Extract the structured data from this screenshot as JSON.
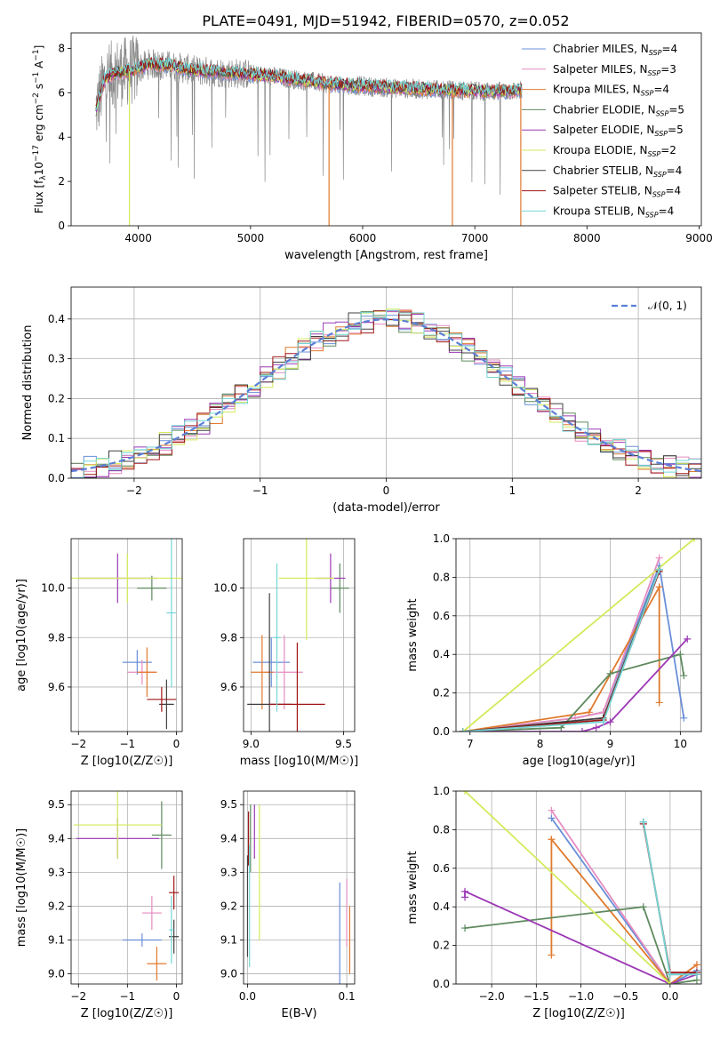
{
  "figure": {
    "title": "PLATE=0491, MJD=51942, FIBERID=0570, z=0.052"
  },
  "models": [
    {
      "name": "Chabrier MILES",
      "nssp": "4",
      "color": "#6a8fd8"
    },
    {
      "name": "Salpeter MILES",
      "nssp": "3",
      "color": "#e68cc0"
    },
    {
      "name": "Kroupa MILES",
      "nssp": "4",
      "color": "#e07a2e"
    },
    {
      "name": "Chabrier ELODIE",
      "nssp": "5",
      "color": "#5e8a5e"
    },
    {
      "name": "Salpeter ELODIE",
      "nssp": "5",
      "color": "#9c38b5"
    },
    {
      "name": "Kroupa ELODIE",
      "nssp": "2",
      "color": "#d4ea5a"
    },
    {
      "name": "Chabrier STELIB",
      "nssp": "4",
      "color": "#404040"
    },
    {
      "name": "Salpeter STELIB",
      "nssp": "4",
      "color": "#a01818"
    },
    {
      "name": "Kroupa STELIB",
      "nssp": "4",
      "color": "#74d6d6"
    }
  ],
  "chart_data": [
    {
      "id": "spectrum",
      "type": "line",
      "xlabel": "wavelength [Angstrom, rest frame]",
      "ylabel": "Flux [f_λ 10^-17 erg cm^-2 s^-1 A^-1]",
      "xlim": [
        3400,
        9020
      ],
      "ylim": [
        0,
        8.7
      ],
      "xticks": [
        4000,
        5000,
        6000,
        7000,
        8000,
        9000
      ],
      "yticks": [
        0,
        2,
        4,
        6,
        8
      ],
      "grid": false,
      "legend": "top-right",
      "data_range": [
        3620,
        7420
      ],
      "continuum": {
        "x": [
          3620,
          3700,
          3800,
          3950,
          4100,
          4300,
          4500,
          4800,
          5100,
          5400,
          5700,
          6000,
          6300,
          6600,
          6900,
          7200,
          7420
        ],
        "y": [
          5.2,
          6.6,
          6.9,
          7.0,
          7.3,
          7.2,
          7.0,
          6.9,
          6.8,
          6.6,
          6.4,
          6.3,
          6.2,
          6.15,
          6.1,
          6.05,
          6.1
        ]
      },
      "data_spectrum_color": "#888888",
      "lower_dips": [
        {
          "x": 5700,
          "color": "#e07a2e"
        },
        {
          "x": 6800,
          "color": "#e07a2e"
        },
        {
          "x": 3920,
          "color": "#d4ea5a"
        },
        {
          "x": 7410,
          "color": "#e07a2e"
        }
      ]
    },
    {
      "id": "residual_histogram",
      "type": "bar",
      "xlabel": "(data-model)/error",
      "ylabel": "Normed distribution",
      "xlim": [
        -2.5,
        2.5
      ],
      "ylim": [
        0,
        0.48
      ],
      "xticks": [
        -2,
        -1,
        0,
        1,
        2
      ],
      "yticks": [
        0.0,
        0.1,
        0.2,
        0.3,
        0.4
      ],
      "grid": true,
      "bin_width": 0.1,
      "reference": {
        "label": "𝒩(0, 1)",
        "color": "#5b7fd6",
        "style": "dashed",
        "mean": 0,
        "sigma": 1
      }
    },
    {
      "id": "age_vs_Z",
      "type": "scatter",
      "xlabel": "Z [log10(Z/Z☉)]",
      "ylabel": "age  [log10(age/yr)]",
      "xlim": [
        -2.15,
        0.12
      ],
      "ylim": [
        9.42,
        10.2
      ],
      "xticks": [
        -2,
        -1,
        0
      ],
      "yticks": [
        9.6,
        9.8,
        10.0
      ],
      "grid": true,
      "points": [
        {
          "model": 0,
          "x": -0.8,
          "y": 9.7,
          "xerr": 0.3,
          "yerr": 0.05
        },
        {
          "model": 1,
          "x": -0.7,
          "y": 9.66,
          "xerr": 0.3,
          "yerr": 0.05
        },
        {
          "model": 2,
          "x": -0.6,
          "y": 9.66,
          "xerr": 0.2,
          "yerr": 0.1
        },
        {
          "model": 3,
          "x": -0.5,
          "y": 10.0,
          "xerr": 0.3,
          "yerr": 0.05
        },
        {
          "model": 4,
          "x": -1.2,
          "y": 10.04,
          "xerr": 0.8,
          "yerr": 0.1
        },
        {
          "model": 5,
          "x": -1.0,
          "y": 10.04,
          "xerr": 1.2,
          "yerr": 0.1
        },
        {
          "model": 6,
          "x": -0.2,
          "y": 9.53,
          "xerr": 0.15,
          "yerr": 0.1
        },
        {
          "model": 7,
          "x": -0.3,
          "y": 9.55,
          "xerr": 0.3,
          "yerr": 0.05
        },
        {
          "model": 8,
          "x": -0.1,
          "y": 9.9,
          "xerr": 0.1,
          "yerr": 0.3
        }
      ]
    },
    {
      "id": "age_vs_mass",
      "type": "scatter",
      "xlabel": "mass [log10(M/M☉)]",
      "ylabel": "",
      "xlim": [
        8.96,
        9.56
      ],
      "ylim": [
        9.42,
        10.2
      ],
      "xticks": [
        9.0,
        9.5
      ],
      "yticks": [
        9.6,
        9.8,
        10.0
      ],
      "grid": true,
      "points": [
        {
          "model": 0,
          "x": 9.11,
          "y": 9.7,
          "xerr": 0.1,
          "yerr": 0.1
        },
        {
          "model": 1,
          "x": 9.18,
          "y": 9.66,
          "xerr": 0.1,
          "yerr": 0.15
        },
        {
          "model": 2,
          "x": 9.06,
          "y": 9.66,
          "xerr": 0.06,
          "yerr": 0.15
        },
        {
          "model": 3,
          "x": 9.48,
          "y": 10.0,
          "xerr": 0.05,
          "yerr": 0.1
        },
        {
          "model": 4,
          "x": 9.43,
          "y": 10.04,
          "xerr": 0.08,
          "yerr": 0.1
        },
        {
          "model": 5,
          "x": 9.3,
          "y": 10.04,
          "xerr": 0.15,
          "yerr": 0.25
        },
        {
          "model": 6,
          "x": 9.1,
          "y": 9.53,
          "xerr": 0.12,
          "yerr": 0.45
        },
        {
          "model": 7,
          "x": 9.25,
          "y": 9.53,
          "xerr": 0.15,
          "yerr": 0.25
        },
        {
          "model": 8,
          "x": 9.14,
          "y": 9.8,
          "xerr": 0.02,
          "yerr": 0.3
        }
      ]
    },
    {
      "id": "weight_vs_age",
      "type": "line",
      "xlabel": "age  [log10(age/yr)]",
      "ylabel": "mass weight",
      "xlim": [
        6.8,
        10.3
      ],
      "ylim": [
        0,
        1
      ],
      "xticks": [
        7,
        8,
        9,
        10
      ],
      "yticks": [
        0.0,
        0.2,
        0.4,
        0.6,
        0.8,
        1.0
      ],
      "grid": true,
      "series": [
        {
          "model": 0,
          "x": [
            6.9,
            8.5,
            8.9,
            9.7,
            10.05
          ],
          "y": [
            0.0,
            0.07,
            0.1,
            0.86,
            0.07
          ]
        },
        {
          "model": 1,
          "x": [
            6.9,
            8.5,
            8.9,
            9.7
          ],
          "y": [
            0.0,
            0.07,
            0.1,
            0.9
          ]
        },
        {
          "model": 2,
          "x": [
            6.9,
            8.7,
            9.7,
            9.7
          ],
          "y": [
            0.0,
            0.1,
            0.75,
            0.15
          ]
        },
        {
          "model": 3,
          "x": [
            6.9,
            8.3,
            9.0,
            10.0,
            10.05
          ],
          "y": [
            0.0,
            0.02,
            0.3,
            0.4,
            0.29
          ]
        },
        {
          "model": 4,
          "x": [
            6.9,
            8.6,
            8.8,
            9.0,
            10.1
          ],
          "y": [
            0.0,
            0.0,
            0.02,
            0.05,
            0.48
          ]
        },
        {
          "model": 5,
          "x": [
            6.9,
            10.2
          ],
          "y": [
            0.0,
            1.0
          ]
        },
        {
          "model": 6,
          "x": [
            6.9,
            8.9,
            9.7
          ],
          "y": [
            0.0,
            0.07,
            0.84
          ]
        },
        {
          "model": 7,
          "x": [
            6.9,
            8.9,
            9.7
          ],
          "y": [
            0.0,
            0.06,
            0.83
          ]
        },
        {
          "model": 8,
          "x": [
            6.9,
            8.9,
            9.7
          ],
          "y": [
            0.0,
            0.05,
            0.84
          ]
        }
      ]
    },
    {
      "id": "mass_vs_Z",
      "type": "scatter",
      "xlabel": "Z [log10(Z/Z☉)]",
      "ylabel": "mass [log10(M/M☉)]",
      "xlim": [
        -2.15,
        0.12
      ],
      "ylim": [
        8.97,
        9.54
      ],
      "xticks": [
        -2,
        -1,
        0
      ],
      "yticks": [
        9.0,
        9.1,
        9.2,
        9.3,
        9.4,
        9.5
      ],
      "grid": true,
      "points": [
        {
          "model": 0,
          "x": -0.7,
          "y": 9.1,
          "xerr": 0.4,
          "yerr": 0.02
        },
        {
          "model": 1,
          "x": -0.5,
          "y": 9.18,
          "xerr": 0.2,
          "yerr": 0.05
        },
        {
          "model": 2,
          "x": -0.4,
          "y": 9.03,
          "xerr": 0.2,
          "yerr": 0.05
        },
        {
          "model": 3,
          "x": -0.3,
          "y": 9.41,
          "xerr": 0.2,
          "yerr": 0.1
        },
        {
          "model": 4,
          "x": -1.2,
          "y": 9.4,
          "xerr": 0.85,
          "yerr": 0.06
        },
        {
          "model": 5,
          "x": -1.2,
          "y": 9.44,
          "xerr": 0.9,
          "yerr": 0.1
        },
        {
          "model": 6,
          "x": -0.05,
          "y": 9.11,
          "xerr": 0.1,
          "yerr": 0.05
        },
        {
          "model": 7,
          "x": -0.05,
          "y": 9.24,
          "xerr": 0.1,
          "yerr": 0.05
        },
        {
          "model": 8,
          "x": -0.1,
          "y": 9.13,
          "xerr": 0.05,
          "yerr": 0.1
        }
      ]
    },
    {
      "id": "mass_vs_ebv",
      "type": "scatter",
      "xlabel": "E(B-V)",
      "ylabel": "",
      "xlim": [
        -0.004,
        0.108
      ],
      "ylim": [
        8.97,
        9.54
      ],
      "xticks": [
        0.0,
        0.1
      ],
      "yticks": [
        9.0,
        9.1,
        9.2,
        9.3,
        9.4,
        9.5
      ],
      "grid": true,
      "points": [
        {
          "model": 0,
          "x": 0.093,
          "y": 9.1,
          "yerr": 0.17
        },
        {
          "model": 1,
          "x": 0.1,
          "y": 9.18,
          "yerr": 0.1
        },
        {
          "model": 2,
          "x": 0.103,
          "y": 9.1,
          "yerr": 0.1
        },
        {
          "model": 3,
          "x": 0.003,
          "y": 9.4,
          "yerr": 0.1
        },
        {
          "model": 4,
          "x": 0.007,
          "y": 9.42,
          "yerr": 0.08
        },
        {
          "model": 5,
          "x": 0.012,
          "y": 9.3,
          "yerr": 0.2
        },
        {
          "model": 6,
          "x": 0.0,
          "y": 9.2,
          "yerr": 0.15
        },
        {
          "model": 7,
          "x": 0.001,
          "y": 9.4,
          "yerr": 0.08
        },
        {
          "model": 8,
          "x": 0.002,
          "y": 9.2,
          "yerr": 0.18
        }
      ]
    },
    {
      "id": "weight_vs_Z",
      "type": "line",
      "xlabel": "Z [log10(Z/Z☉)]",
      "ylabel": "mass weight",
      "xlim": [
        -2.4,
        0.35
      ],
      "ylim": [
        0,
        1
      ],
      "xticks": [
        -2.0,
        -1.5,
        -1.0,
        -0.5,
        0.0
      ],
      "yticks": [
        0.0,
        0.2,
        0.4,
        0.6,
        0.8,
        1.0
      ],
      "grid": true,
      "series": [
        {
          "model": 0,
          "x": [
            -1.33,
            0.0,
            0.3
          ],
          "y": [
            0.86,
            0.0,
            0.07
          ]
        },
        {
          "model": 1,
          "x": [
            -1.33,
            0.0,
            0.3
          ],
          "y": [
            0.9,
            0.0,
            0.1
          ]
        },
        {
          "model": 2,
          "x": [
            -1.33,
            -1.33,
            0.0,
            0.3
          ],
          "y": [
            0.15,
            0.75,
            0.0,
            0.1
          ]
        },
        {
          "model": 3,
          "x": [
            -2.3,
            -0.3,
            0.0,
            0.3
          ],
          "y": [
            0.29,
            0.4,
            0.0,
            0.02
          ]
        },
        {
          "model": 4,
          "x": [
            -2.3,
            -2.3,
            0.0,
            0.3
          ],
          "y": [
            0.45,
            0.48,
            0.0,
            0.05
          ]
        },
        {
          "model": 5,
          "x": [
            -2.3,
            0.0
          ],
          "y": [
            1.0,
            0.0
          ]
        },
        {
          "model": 6,
          "x": [
            -0.3,
            0.0,
            0.3
          ],
          "y": [
            0.84,
            0.05,
            0.05
          ]
        },
        {
          "model": 7,
          "x": [
            -0.3,
            0.0,
            0.3
          ],
          "y": [
            0.83,
            0.06,
            0.06
          ]
        },
        {
          "model": 8,
          "x": [
            -0.3,
            0.0,
            0.3
          ],
          "y": [
            0.84,
            0.05,
            0.05
          ]
        }
      ]
    }
  ]
}
